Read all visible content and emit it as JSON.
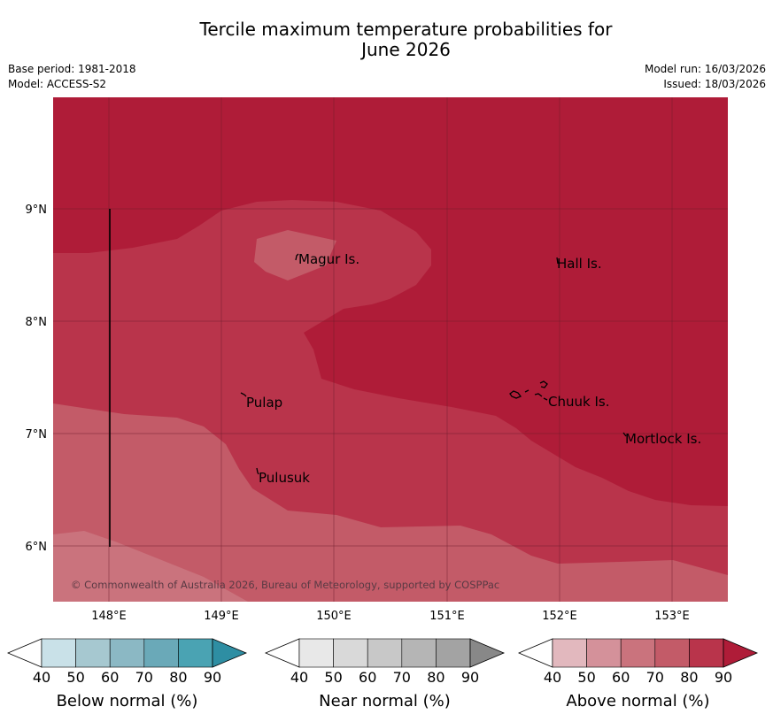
{
  "title": {
    "line1": "Tercile maximum temperature probabilities for",
    "line2": "June 2026"
  },
  "meta": {
    "base_period": "Base period: 1981-2018",
    "model": "Model: ACCESS-S2",
    "model_run": "Model run: 16/03/2026",
    "issued": "Issued: 18/03/2026"
  },
  "map": {
    "copyright": "© Commonwealth of Australia 2026, Bureau of Meteorology, supported by COSPPac",
    "lon_ticks": [
      "148°E",
      "149°E",
      "150°E",
      "151°E",
      "152°E",
      "153°E"
    ],
    "lat_ticks": [
      "9°N",
      "8°N",
      "7°N",
      "6°N"
    ],
    "places": [
      "Magur Is.",
      "Hall Is.",
      "Pulap",
      "Chuuk Is.",
      "Mortlock Is.",
      "Pulusuk"
    ]
  },
  "legends": {
    "ticks": [
      "40",
      "50",
      "60",
      "70",
      "80",
      "90"
    ],
    "below": {
      "label": "Below normal (%)",
      "colors": [
        "#ffffff",
        "#c9e1e8",
        "#a6c8d0",
        "#8bb8c4",
        "#6aa9b8",
        "#4aa3b3",
        "#2e8ea3"
      ]
    },
    "near": {
      "label": "Near normal (%)",
      "colors": [
        "#ffffff",
        "#e8e8e8",
        "#d9d9d9",
        "#c8c8c8",
        "#b5b5b5",
        "#a3a3a3",
        "#888888"
      ]
    },
    "above": {
      "label": "Above normal (%)",
      "colors": [
        "#ffffff",
        "#e2b8be",
        "#d4919a",
        "#ca737d",
        "#c35b68",
        "#b9344b",
        "#af1c38"
      ]
    }
  }
}
